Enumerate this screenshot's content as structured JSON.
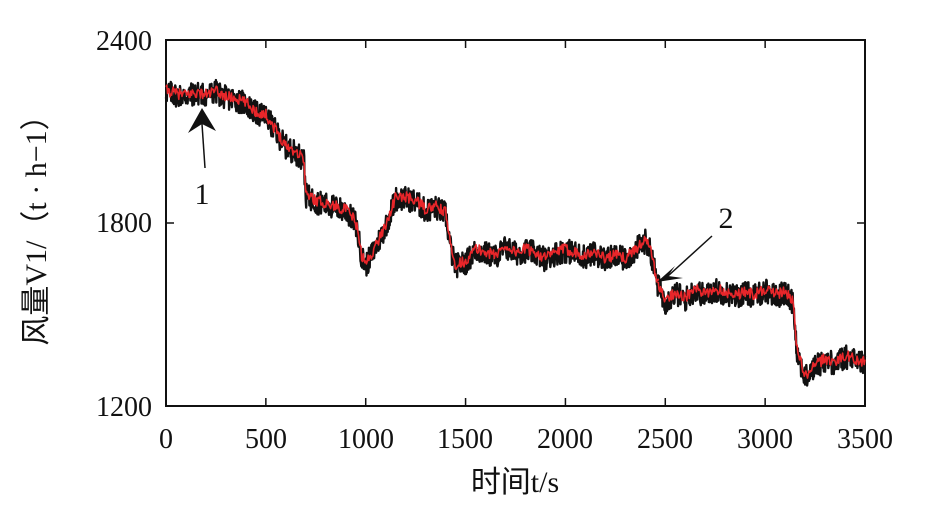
{
  "chart_data": {
    "type": "line",
    "title": "",
    "xlabel": "时间t/s",
    "ylabel": "风量V1/（t · h−1）",
    "xlim": [
      0,
      3500
    ],
    "ylim": [
      1200,
      2400
    ],
    "x_ticks": [
      "0",
      "500",
      "1000",
      "1500",
      "2000",
      "2500",
      "3000",
      "3500"
    ],
    "y_ticks": [
      "2400",
      "1800",
      "1200"
    ],
    "grid": false,
    "legend": "none",
    "series": [
      {
        "color": "#111111",
        "style": "raw noisy signal",
        "x": [
          0,
          50,
          100,
          150,
          200,
          250,
          300,
          350,
          400,
          450,
          500,
          550,
          600,
          650,
          690,
          700,
          750,
          800,
          850,
          900,
          950,
          980,
          1000,
          1050,
          1100,
          1150,
          1200,
          1250,
          1300,
          1350,
          1400,
          1430,
          1450,
          1500,
          1550,
          1600,
          1650,
          1700,
          1750,
          1800,
          1850,
          1900,
          1950,
          2000,
          2050,
          2100,
          2150,
          2200,
          2250,
          2300,
          2350,
          2400,
          2430,
          2460,
          2500,
          2550,
          2600,
          2650,
          2700,
          2750,
          2800,
          2850,
          2900,
          2950,
          3000,
          3050,
          3100,
          3140,
          3160,
          3200,
          3250,
          3300,
          3350,
          3400,
          3450,
          3500
        ],
        "y": [
          2230,
          2220,
          2215,
          2225,
          2220,
          2230,
          2210,
          2205,
          2190,
          2160,
          2150,
          2100,
          2050,
          2030,
          2010,
          1890,
          1870,
          1860,
          1850,
          1840,
          1800,
          1690,
          1660,
          1720,
          1790,
          1880,
          1880,
          1870,
          1840,
          1850,
          1830,
          1700,
          1660,
          1670,
          1710,
          1700,
          1690,
          1720,
          1700,
          1710,
          1700,
          1680,
          1700,
          1710,
          1700,
          1690,
          1700,
          1680,
          1690,
          1680,
          1710,
          1740,
          1700,
          1600,
          1540,
          1570,
          1550,
          1580,
          1560,
          1580,
          1570,
          1560,
          1570,
          1560,
          1580,
          1560,
          1570,
          1540,
          1380,
          1290,
          1330,
          1350,
          1340,
          1360,
          1350,
          1340
        ]
      },
      {
        "color": "#e8262a",
        "style": "filtered signal",
        "x": [
          0,
          50,
          100,
          150,
          200,
          250,
          300,
          350,
          400,
          450,
          500,
          550,
          600,
          650,
          690,
          700,
          750,
          800,
          850,
          900,
          950,
          980,
          1000,
          1050,
          1100,
          1150,
          1200,
          1250,
          1300,
          1350,
          1400,
          1430,
          1450,
          1500,
          1550,
          1600,
          1650,
          1700,
          1750,
          1800,
          1850,
          1900,
          1950,
          2000,
          2050,
          2100,
          2150,
          2200,
          2250,
          2300,
          2350,
          2400,
          2430,
          2460,
          2500,
          2550,
          2600,
          2650,
          2700,
          2750,
          2800,
          2850,
          2900,
          2950,
          3000,
          3050,
          3100,
          3140,
          3160,
          3200,
          3250,
          3300,
          3350,
          3400,
          3450,
          3500
        ],
        "y": [
          2235,
          2225,
          2220,
          2228,
          2222,
          2232,
          2215,
          2208,
          2195,
          2165,
          2155,
          2105,
          2055,
          2035,
          2015,
          1895,
          1875,
          1865,
          1855,
          1845,
          1805,
          1695,
          1665,
          1725,
          1795,
          1885,
          1885,
          1875,
          1845,
          1855,
          1835,
          1705,
          1665,
          1675,
          1715,
          1705,
          1695,
          1725,
          1705,
          1715,
          1705,
          1685,
          1705,
          1715,
          1705,
          1695,
          1705,
          1685,
          1695,
          1685,
          1715,
          1745,
          1705,
          1605,
          1545,
          1575,
          1555,
          1585,
          1565,
          1585,
          1575,
          1565,
          1575,
          1565,
          1585,
          1565,
          1575,
          1545,
          1385,
          1295,
          1335,
          1355,
          1345,
          1365,
          1355,
          1345
        ]
      }
    ],
    "annotations": [
      {
        "label": "1",
        "x": 180,
        "y": 2200
      },
      {
        "label": "2",
        "x": 2470,
        "y": 1610
      }
    ]
  }
}
